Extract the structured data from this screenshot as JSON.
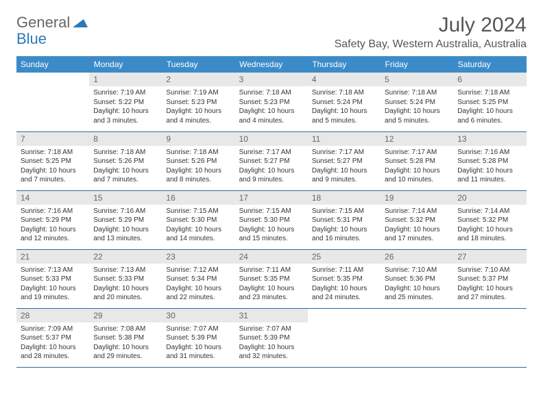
{
  "logo": {
    "general": "General",
    "blue": "Blue"
  },
  "title": "July 2024",
  "location": "Safety Bay, Western Australia, Australia",
  "colors": {
    "header_bg": "#3b8bc8",
    "header_text": "#ffffff",
    "daynum_bg": "#e8e8e8",
    "daynum_text": "#666666",
    "border": "#2a6a9e",
    "body_text": "#333333",
    "logo_gray": "#666666",
    "logo_blue": "#2a7ab8"
  },
  "weekdays": [
    "Sunday",
    "Monday",
    "Tuesday",
    "Wednesday",
    "Thursday",
    "Friday",
    "Saturday"
  ],
  "lead_blanks": 1,
  "days": [
    {
      "n": 1,
      "sunrise": "7:19 AM",
      "sunset": "5:22 PM",
      "daylight": "10 hours and 3 minutes."
    },
    {
      "n": 2,
      "sunrise": "7:19 AM",
      "sunset": "5:23 PM",
      "daylight": "10 hours and 4 minutes."
    },
    {
      "n": 3,
      "sunrise": "7:18 AM",
      "sunset": "5:23 PM",
      "daylight": "10 hours and 4 minutes."
    },
    {
      "n": 4,
      "sunrise": "7:18 AM",
      "sunset": "5:24 PM",
      "daylight": "10 hours and 5 minutes."
    },
    {
      "n": 5,
      "sunrise": "7:18 AM",
      "sunset": "5:24 PM",
      "daylight": "10 hours and 5 minutes."
    },
    {
      "n": 6,
      "sunrise": "7:18 AM",
      "sunset": "5:25 PM",
      "daylight": "10 hours and 6 minutes."
    },
    {
      "n": 7,
      "sunrise": "7:18 AM",
      "sunset": "5:25 PM",
      "daylight": "10 hours and 7 minutes."
    },
    {
      "n": 8,
      "sunrise": "7:18 AM",
      "sunset": "5:26 PM",
      "daylight": "10 hours and 7 minutes."
    },
    {
      "n": 9,
      "sunrise": "7:18 AM",
      "sunset": "5:26 PM",
      "daylight": "10 hours and 8 minutes."
    },
    {
      "n": 10,
      "sunrise": "7:17 AM",
      "sunset": "5:27 PM",
      "daylight": "10 hours and 9 minutes."
    },
    {
      "n": 11,
      "sunrise": "7:17 AM",
      "sunset": "5:27 PM",
      "daylight": "10 hours and 9 minutes."
    },
    {
      "n": 12,
      "sunrise": "7:17 AM",
      "sunset": "5:28 PM",
      "daylight": "10 hours and 10 minutes."
    },
    {
      "n": 13,
      "sunrise": "7:16 AM",
      "sunset": "5:28 PM",
      "daylight": "10 hours and 11 minutes."
    },
    {
      "n": 14,
      "sunrise": "7:16 AM",
      "sunset": "5:29 PM",
      "daylight": "10 hours and 12 minutes."
    },
    {
      "n": 15,
      "sunrise": "7:16 AM",
      "sunset": "5:29 PM",
      "daylight": "10 hours and 13 minutes."
    },
    {
      "n": 16,
      "sunrise": "7:15 AM",
      "sunset": "5:30 PM",
      "daylight": "10 hours and 14 minutes."
    },
    {
      "n": 17,
      "sunrise": "7:15 AM",
      "sunset": "5:30 PM",
      "daylight": "10 hours and 15 minutes."
    },
    {
      "n": 18,
      "sunrise": "7:15 AM",
      "sunset": "5:31 PM",
      "daylight": "10 hours and 16 minutes."
    },
    {
      "n": 19,
      "sunrise": "7:14 AM",
      "sunset": "5:32 PM",
      "daylight": "10 hours and 17 minutes."
    },
    {
      "n": 20,
      "sunrise": "7:14 AM",
      "sunset": "5:32 PM",
      "daylight": "10 hours and 18 minutes."
    },
    {
      "n": 21,
      "sunrise": "7:13 AM",
      "sunset": "5:33 PM",
      "daylight": "10 hours and 19 minutes."
    },
    {
      "n": 22,
      "sunrise": "7:13 AM",
      "sunset": "5:33 PM",
      "daylight": "10 hours and 20 minutes."
    },
    {
      "n": 23,
      "sunrise": "7:12 AM",
      "sunset": "5:34 PM",
      "daylight": "10 hours and 22 minutes."
    },
    {
      "n": 24,
      "sunrise": "7:11 AM",
      "sunset": "5:35 PM",
      "daylight": "10 hours and 23 minutes."
    },
    {
      "n": 25,
      "sunrise": "7:11 AM",
      "sunset": "5:35 PM",
      "daylight": "10 hours and 24 minutes."
    },
    {
      "n": 26,
      "sunrise": "7:10 AM",
      "sunset": "5:36 PM",
      "daylight": "10 hours and 25 minutes."
    },
    {
      "n": 27,
      "sunrise": "7:10 AM",
      "sunset": "5:37 PM",
      "daylight": "10 hours and 27 minutes."
    },
    {
      "n": 28,
      "sunrise": "7:09 AM",
      "sunset": "5:37 PM",
      "daylight": "10 hours and 28 minutes."
    },
    {
      "n": 29,
      "sunrise": "7:08 AM",
      "sunset": "5:38 PM",
      "daylight": "10 hours and 29 minutes."
    },
    {
      "n": 30,
      "sunrise": "7:07 AM",
      "sunset": "5:39 PM",
      "daylight": "10 hours and 31 minutes."
    },
    {
      "n": 31,
      "sunrise": "7:07 AM",
      "sunset": "5:39 PM",
      "daylight": "10 hours and 32 minutes."
    }
  ],
  "labels": {
    "sunrise": "Sunrise:",
    "sunset": "Sunset:",
    "daylight": "Daylight:"
  }
}
